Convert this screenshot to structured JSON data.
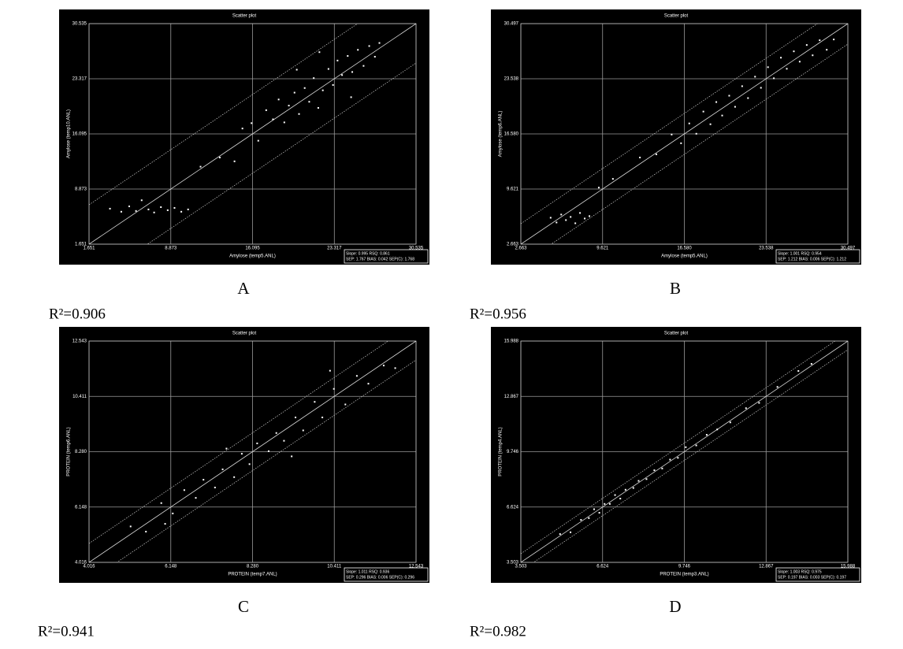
{
  "chart_data": [
    {
      "type": "scatter",
      "title": "Scatter plot",
      "x_label": "Amylose (temp5.ANL)",
      "y_label": "Amylose (temp10.ANL)",
      "stats": [
        "Slope: 0.995  RSQ: 0.861",
        "SEP: 1.767  BIAS: 0.042  SEP(C): 1.768"
      ],
      "caption": "A",
      "annotation": "R²=0.906",
      "color": "#ffffff",
      "grid": true,
      "xlim": [
        1.651,
        30.535
      ],
      "ylim": [
        1.651,
        30.535
      ],
      "xticks": [
        1.651,
        8.873,
        16.095,
        23.317,
        30.535
      ],
      "yticks": [
        1.651,
        8.873,
        16.095,
        23.317,
        30.535
      ],
      "x": [
        3.5,
        4.5,
        5.2,
        5.8,
        6.3,
        6.9,
        7.4,
        8.0,
        8.6,
        9.2,
        9.8,
        10.4,
        11.5,
        13.2,
        14.5,
        15.2,
        16.0,
        16.6,
        17.3,
        17.9,
        18.4,
        18.9,
        19.3,
        19.8,
        20.2,
        20.7,
        21.1,
        21.5,
        21.9,
        22.3,
        22.8,
        23.2,
        23.6,
        24.0,
        24.5,
        24.9,
        25.4,
        25.9,
        26.4,
        26.9,
        27.3,
        22.0,
        20.0,
        24.8
      ],
      "y": [
        6.3,
        5.9,
        6.6,
        6.0,
        7.4,
        6.2,
        5.8,
        6.5,
        6.1,
        6.4,
        5.9,
        6.2,
        11.8,
        13.0,
        12.5,
        16.8,
        17.5,
        15.2,
        19.2,
        18.0,
        20.6,
        17.6,
        19.8,
        21.5,
        18.7,
        22.1,
        20.3,
        23.4,
        19.5,
        21.8,
        24.6,
        22.5,
        25.7,
        23.8,
        26.3,
        24.2,
        27.1,
        25.0,
        27.6,
        26.2,
        28.0,
        26.8,
        24.5,
        20.9
      ]
    },
    {
      "type": "scatter",
      "title": "Scatter plot",
      "x_label": "Amylose (temp5.ANL)",
      "y_label": "Amylose (temp6.ANL)",
      "stats": [
        "Slope: 1.001  RSQ: 0.954",
        "SEP: 1.212  BIAS: 0.006  SEP(C): 1.212"
      ],
      "caption": "B",
      "annotation": "R²=0.956",
      "color": "#ffffff",
      "grid": true,
      "xlim": [
        2.663,
        30.497
      ],
      "ylim": [
        2.663,
        30.497
      ],
      "xticks": [
        2.663,
        9.621,
        {
          "value": 16.58,
          "label": "16.580"
        },
        23.538,
        30.497
      ],
      "yticks": [
        2.663,
        9.621,
        {
          "value": 16.58,
          "label": "16.580"
        },
        23.538,
        30.497
      ],
      "x": [
        5.2,
        5.7,
        6.1,
        6.5,
        6.9,
        7.3,
        7.7,
        8.1,
        8.5,
        9.3,
        10.5,
        12.8,
        14.2,
        15.5,
        16.3,
        17.0,
        17.6,
        18.2,
        18.8,
        19.3,
        19.8,
        20.4,
        20.9,
        21.5,
        22.0,
        22.6,
        23.1,
        23.7,
        24.2,
        24.8,
        25.3,
        25.9,
        26.4,
        27.0,
        27.5,
        28.1,
        28.7,
        29.3
      ],
      "y": [
        6.0,
        5.4,
        6.4,
        5.7,
        6.1,
        5.3,
        6.6,
        5.9,
        6.2,
        9.8,
        10.9,
        13.6,
        14.0,
        16.5,
        15.4,
        17.9,
        16.6,
        19.4,
        17.8,
        20.6,
        18.9,
        21.4,
        20.0,
        22.6,
        21.1,
        23.8,
        22.4,
        25.0,
        23.6,
        26.2,
        24.8,
        27.0,
        25.7,
        27.8,
        26.5,
        28.4,
        27.2,
        28.5
      ]
    },
    {
      "type": "scatter",
      "title": "Scatter plot",
      "x_label": "PROTEIN (temp7.ANL)",
      "y_label": "PROTEIN (temp6.ANL)",
      "stats": [
        "Slope: 1.011  RSQ: 0.936",
        "SEP: 0.296  BIAS: 0.006  SEP(C): 0.296"
      ],
      "caption": "C",
      "annotation": "R²=0.941",
      "color": "#ffffff",
      "grid": true,
      "xlim": [
        4.016,
        12.543
      ],
      "ylim": [
        4.016,
        12.543
      ],
      "xticks": [
        4.016,
        6.148,
        {
          "value": 8.28,
          "label": "8.280"
        },
        10.411,
        12.543
      ],
      "yticks": [
        4.016,
        6.148,
        {
          "value": 8.28,
          "label": "8.280"
        },
        10.411,
        12.543
      ],
      "x": [
        5.1,
        5.5,
        5.9,
        6.2,
        6.5,
        6.8,
        7.0,
        7.3,
        7.5,
        7.8,
        8.0,
        8.2,
        8.4,
        8.7,
        8.9,
        9.1,
        9.4,
        9.6,
        9.9,
        10.1,
        10.4,
        10.7,
        11.0,
        11.3,
        11.7,
        12.0,
        7.6,
        9.3,
        6.0,
        10.3
      ],
      "y": [
        5.4,
        5.2,
        6.3,
        5.9,
        6.8,
        6.5,
        7.2,
        6.9,
        7.6,
        7.3,
        8.2,
        7.8,
        8.6,
        8.3,
        9.0,
        8.7,
        9.6,
        9.1,
        10.2,
        9.6,
        10.7,
        10.1,
        11.2,
        10.9,
        11.6,
        11.5,
        8.4,
        8.1,
        5.5,
        11.4
      ]
    },
    {
      "type": "scatter",
      "title": "Scatter plot",
      "x_label": "PROTEIN (temp3.ANL)",
      "y_label": "PROTEIN (temp4.ANL)",
      "stats": [
        "Slope: 1.003  RSQ: 0.975",
        "SEP: 0.197  BIAS: 0.003  SEP(C): 0.197"
      ],
      "caption": "D",
      "annotation": "R²=0.982",
      "color": "#ffffff",
      "grid": true,
      "xlim": [
        3.503,
        15.988
      ],
      "ylim": [
        3.503,
        15.988
      ],
      "xticks": [
        3.503,
        6.624,
        9.746,
        12.867,
        15.988
      ],
      "yticks": [
        3.503,
        6.624,
        9.746,
        12.867,
        15.988
      ],
      "x": [
        5.0,
        5.4,
        5.8,
        6.1,
        6.3,
        6.5,
        6.7,
        6.9,
        7.1,
        7.3,
        7.5,
        7.8,
        8.0,
        8.3,
        8.6,
        8.9,
        9.2,
        9.5,
        9.8,
        10.2,
        10.6,
        11.0,
        11.5,
        12.1,
        12.6,
        13.3,
        14.1,
        14.6
      ],
      "y": [
        5.1,
        5.2,
        5.9,
        6.0,
        6.5,
        6.3,
        6.8,
        6.8,
        7.3,
        7.1,
        7.6,
        7.7,
        8.1,
        8.2,
        8.7,
        8.8,
        9.3,
        9.4,
        10.0,
        10.1,
        10.7,
        11.0,
        11.4,
        12.2,
        12.5,
        13.4,
        14.3,
        14.7
      ]
    }
  ]
}
